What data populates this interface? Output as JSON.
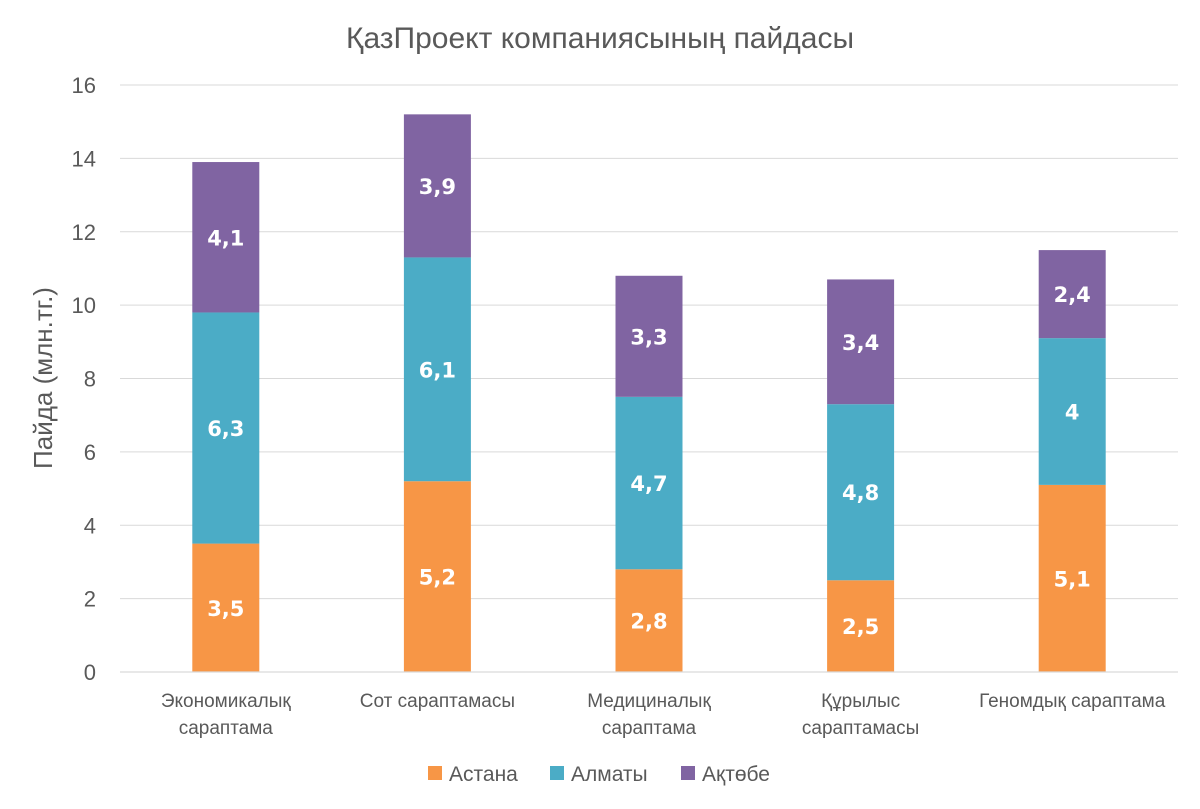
{
  "chart_data": {
    "type": "bar",
    "stacked": true,
    "title": "ҚазПроект компаниясының пайдасы",
    "ylabel": "Пайда (млн.тг.)",
    "xlabel": "",
    "ylim": [
      0,
      16
    ],
    "yticks": [
      "0",
      "2",
      "4",
      "6",
      "8",
      "10",
      "12",
      "14",
      "16"
    ],
    "grid": true,
    "legend_position": "bottom",
    "categories": [
      [
        "Экономикалық",
        "сараптама"
      ],
      [
        "Сот сараптамасы"
      ],
      [
        "Медициналық",
        "сараптама"
      ],
      [
        "Құрылыс",
        "сараптамасы"
      ],
      [
        "Геномдық сараптама"
      ]
    ],
    "series": [
      {
        "name": "Астана",
        "color": "#f79646",
        "values": [
          3.5,
          5.2,
          2.8,
          2.5,
          5.1
        ],
        "labels": [
          "3,5",
          "5,2",
          "2,8",
          "2,5",
          "5,1"
        ]
      },
      {
        "name": "Алматы",
        "color": "#4bacc6",
        "values": [
          6.3,
          6.1,
          4.7,
          4.8,
          4.0
        ],
        "labels": [
          "6,3",
          "6,1",
          "4,7",
          "4,8",
          "4"
        ]
      },
      {
        "name": "Ақтөбе",
        "color": "#8064a2",
        "values": [
          4.1,
          3.9,
          3.3,
          3.4,
          2.4
        ],
        "labels": [
          "4,1",
          "3,9",
          "3,3",
          "3,4",
          "2,4"
        ]
      }
    ]
  }
}
